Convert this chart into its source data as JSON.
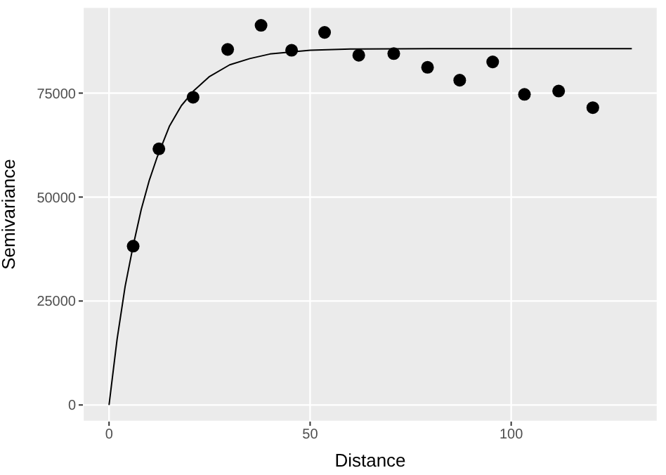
{
  "chart_data": {
    "type": "scatter",
    "xlabel": "Distance",
    "ylabel": "Semivariance",
    "xlim": [
      -6.5,
      136.4
    ],
    "ylim": [
      -4000,
      95700
    ],
    "xticks": [
      0,
      50,
      100
    ],
    "yticks": [
      0,
      25000,
      50000,
      75000
    ],
    "grid": true,
    "series": [
      {
        "marker": "circle",
        "color": "#000000",
        "x": [
          6.0,
          12.4,
          20.9,
          29.5,
          37.8,
          45.4,
          53.6,
          62.1,
          70.8,
          79.2,
          87.2,
          95.4,
          103.3,
          111.8,
          120.3
        ],
        "values": [
          38200,
          61600,
          74000,
          85500,
          91300,
          85300,
          89600,
          84100,
          84500,
          81200,
          78100,
          82500,
          74700,
          75500,
          71500
        ]
      },
      {
        "type": "line",
        "marker": "none",
        "line_style": "solid",
        "color": "#000000",
        "x": [
          0,
          2,
          4,
          6,
          8,
          10,
          12,
          15,
          18,
          21,
          25,
          30,
          35,
          40,
          50,
          60,
          80,
          130
        ],
        "values": [
          0,
          15800,
          28500,
          38300,
          47000,
          54000,
          59700,
          67000,
          72000,
          75500,
          79000,
          81800,
          83300,
          84400,
          85300,
          85600,
          85700,
          85700
        ]
      }
    ]
  }
}
